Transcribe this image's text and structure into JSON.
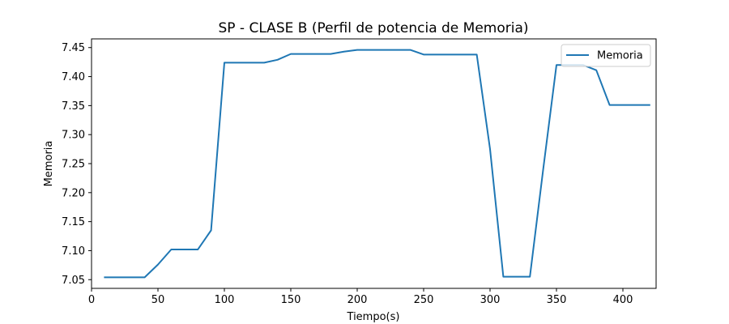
{
  "chart_data": {
    "type": "line",
    "title": "SP - CLASE B (Perfil de potencia de Memoria)",
    "xlabel": "Tiempo(s)",
    "ylabel": "Memoria",
    "xlim": [
      0,
      425
    ],
    "ylim": [
      7.035,
      7.465
    ],
    "x_ticks": [
      0,
      50,
      100,
      150,
      200,
      250,
      300,
      350,
      400
    ],
    "y_ticks": [
      7.05,
      7.1,
      7.15,
      7.2,
      7.25,
      7.3,
      7.35,
      7.4,
      7.45
    ],
    "x_tick_labels": [
      "0",
      "50",
      "100",
      "150",
      "200",
      "250",
      "300",
      "350",
      "400"
    ],
    "y_tick_labels": [
      "7.05",
      "7.10",
      "7.15",
      "7.20",
      "7.25",
      "7.30",
      "7.35",
      "7.40",
      "7.45"
    ],
    "grid": false,
    "legend_position": "top-right",
    "series": [
      {
        "name": "Memoria",
        "color": "#1f77b4",
        "x": [
          10,
          20,
          30,
          40,
          50,
          60,
          70,
          80,
          90,
          100,
          110,
          120,
          130,
          140,
          150,
          160,
          170,
          180,
          190,
          200,
          210,
          220,
          230,
          240,
          250,
          260,
          270,
          280,
          290,
          300,
          310,
          320,
          330,
          340,
          350,
          360,
          370,
          380,
          390,
          400,
          410,
          420
        ],
        "y": [
          7.054,
          7.054,
          7.054,
          7.054,
          7.076,
          7.102,
          7.102,
          7.102,
          7.135,
          7.424,
          7.424,
          7.424,
          7.424,
          7.429,
          7.439,
          7.439,
          7.439,
          7.439,
          7.443,
          7.446,
          7.446,
          7.446,
          7.446,
          7.446,
          7.438,
          7.438,
          7.438,
          7.438,
          7.438,
          7.275,
          7.055,
          7.055,
          7.055,
          7.24,
          7.42,
          7.42,
          7.42,
          7.411,
          7.351,
          7.351,
          7.351,
          7.351
        ]
      }
    ]
  }
}
